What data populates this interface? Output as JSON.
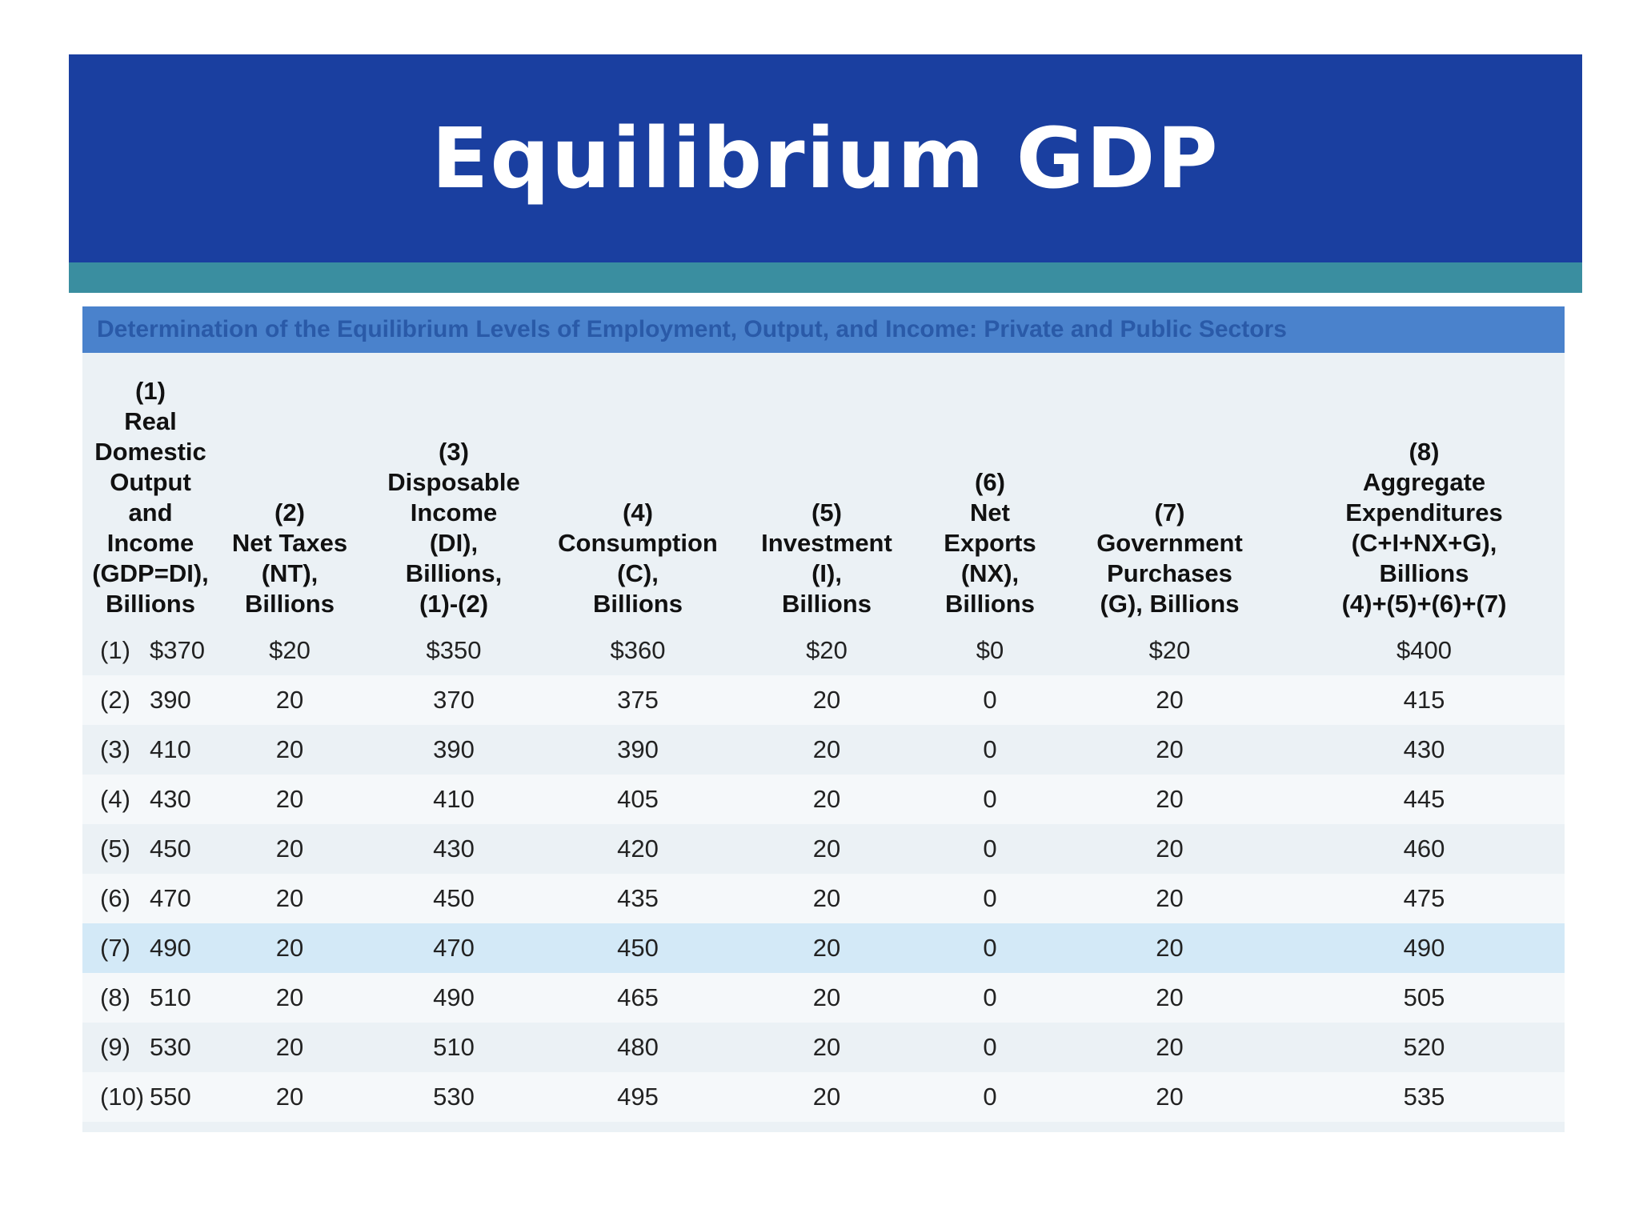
{
  "title": "Equilibrium GDP",
  "caption": "Determination of the Equilibrium Levels of Employment, Output, and Income: Private and Public Sectors",
  "colors": {
    "banner": "#1a3fa0",
    "strip": "#3a8ea0",
    "caption_bar": "#4a82cc",
    "highlight_row": "#d3e9f7"
  },
  "columns": [
    "(1)\nReal\nDomestic\nOutput\nand\nIncome\n(GDP=DI),\nBillions",
    "(2)\nNet Taxes\n(NT),\nBillions",
    "(3)\nDisposable\nIncome\n(DI),\nBillions,\n(1)-(2)",
    "(4)\nConsumption\n(C),\nBillions",
    "(5)\nInvestment\n(I),\nBillions",
    "(6)\nNet\nExports\n(NX),\nBillions",
    "(7)\nGovernment\nPurchases\n(G), Billions",
    "(8)\nAggregate\nExpenditures\n(C+I+NX+G),\nBillions\n(4)+(5)+(6)+(7)"
  ],
  "highlight_row_index": 6,
  "rows": [
    {
      "label": "(1)",
      "gdp": "$370",
      "nt": "$20",
      "di": "$350",
      "c": "$360",
      "i": "$20",
      "nx": "$0",
      "g": "$20",
      "ae": "$400"
    },
    {
      "label": "(2)",
      "gdp": "390",
      "nt": "20",
      "di": "370",
      "c": "375",
      "i": "20",
      "nx": "0",
      "g": "20",
      "ae": "415"
    },
    {
      "label": "(3)",
      "gdp": "410",
      "nt": "20",
      "di": "390",
      "c": "390",
      "i": "20",
      "nx": "0",
      "g": "20",
      "ae": "430"
    },
    {
      "label": "(4)",
      "gdp": "430",
      "nt": "20",
      "di": "410",
      "c": "405",
      "i": "20",
      "nx": "0",
      "g": "20",
      "ae": "445"
    },
    {
      "label": "(5)",
      "gdp": "450",
      "nt": "20",
      "di": "430",
      "c": "420",
      "i": "20",
      "nx": "0",
      "g": "20",
      "ae": "460"
    },
    {
      "label": "(6)",
      "gdp": "470",
      "nt": "20",
      "di": "450",
      "c": "435",
      "i": "20",
      "nx": "0",
      "g": "20",
      "ae": "475"
    },
    {
      "label": "(7)",
      "gdp": "490",
      "nt": "20",
      "di": "470",
      "c": "450",
      "i": "20",
      "nx": "0",
      "g": "20",
      "ae": "490"
    },
    {
      "label": "(8)",
      "gdp": "510",
      "nt": "20",
      "di": "490",
      "c": "465",
      "i": "20",
      "nx": "0",
      "g": "20",
      "ae": "505"
    },
    {
      "label": "(9)",
      "gdp": "530",
      "nt": "20",
      "di": "510",
      "c": "480",
      "i": "20",
      "nx": "0",
      "g": "20",
      "ae": "520"
    },
    {
      "label": "(10)",
      "gdp": "550",
      "nt": "20",
      "di": "530",
      "c": "495",
      "i": "20",
      "nx": "0",
      "g": "20",
      "ae": "535"
    }
  ]
}
